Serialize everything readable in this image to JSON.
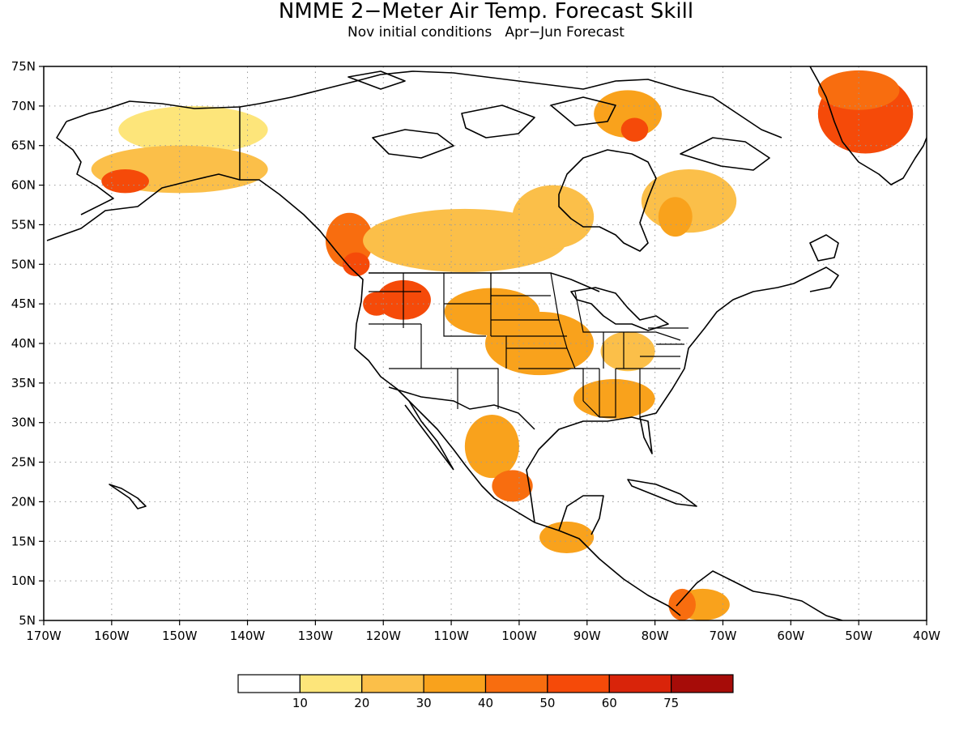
{
  "title": "NMME 2−Meter Air Temp. Forecast Skill",
  "subtitle": "Nov initial conditions   Apr−Jun Forecast",
  "map": {
    "lon_range": [
      -170,
      -40
    ],
    "lat_range": [
      5,
      75
    ],
    "gridlines": "dotted",
    "lat_ticks": [
      "5N",
      "10N",
      "15N",
      "20N",
      "25N",
      "30N",
      "35N",
      "40N",
      "45N",
      "50N",
      "55N",
      "60N",
      "65N",
      "70N",
      "75N"
    ],
    "lon_ticks": [
      "170W",
      "160W",
      "150W",
      "140W",
      "130W",
      "120W",
      "110W",
      "100W",
      "90W",
      "80W",
      "70W",
      "60W",
      "50W",
      "40W"
    ]
  },
  "colorbar": {
    "labels": [
      "10",
      "20",
      "30",
      "40",
      "50",
      "60",
      "75"
    ],
    "colors": [
      "#ffffff",
      "#fde57a",
      "#fbbf49",
      "#f9a21c",
      "#f86d0f",
      "#f54a09",
      "#d9240a",
      "#a60c08"
    ]
  },
  "chart_data": {
    "type": "heatmap",
    "variable": "2-Meter Air Temperature forecast skill",
    "x_range": [
      -170,
      -40
    ],
    "y_range": [
      5,
      75
    ],
    "levels": [
      10,
      20,
      30,
      40,
      50,
      60,
      75
    ],
    "regions": [
      {
        "lon": -148,
        "lat": 67,
        "w": 22,
        "h": 6,
        "level": 0
      },
      {
        "lon": -150,
        "lat": 62,
        "w": 26,
        "h": 6,
        "level": 1
      },
      {
        "lon": -158,
        "lat": 60.5,
        "w": 7,
        "h": 3,
        "level": 4
      },
      {
        "lon": -125,
        "lat": 53,
        "w": 7,
        "h": 7,
        "level": 3
      },
      {
        "lon": -124,
        "lat": 50,
        "w": 4,
        "h": 3,
        "level": 4
      },
      {
        "lon": -108,
        "lat": 53,
        "w": 30,
        "h": 8,
        "level": 1
      },
      {
        "lon": -104,
        "lat": 44,
        "w": 14,
        "h": 6,
        "level": 2
      },
      {
        "lon": -117,
        "lat": 45.5,
        "w": 8,
        "h": 5,
        "level": 4
      },
      {
        "lon": -121,
        "lat": 45,
        "w": 4,
        "h": 3,
        "level": 4
      },
      {
        "lon": -97,
        "lat": 40,
        "w": 16,
        "h": 8,
        "level": 2
      },
      {
        "lon": -86,
        "lat": 33,
        "w": 12,
        "h": 5,
        "level": 2
      },
      {
        "lon": -84,
        "lat": 39,
        "w": 8,
        "h": 5,
        "level": 1
      },
      {
        "lon": -104,
        "lat": 27,
        "w": 8,
        "h": 8,
        "level": 2
      },
      {
        "lon": -101,
        "lat": 22,
        "w": 6,
        "h": 4,
        "level": 3
      },
      {
        "lon": -93,
        "lat": 15.5,
        "w": 8,
        "h": 4,
        "level": 2
      },
      {
        "lon": -95,
        "lat": 56,
        "w": 12,
        "h": 8,
        "level": 1
      },
      {
        "lon": -75,
        "lat": 58,
        "w": 14,
        "h": 8,
        "level": 1
      },
      {
        "lon": -77,
        "lat": 56,
        "w": 5,
        "h": 5,
        "level": 2
      },
      {
        "lon": -84,
        "lat": 69,
        "w": 10,
        "h": 6,
        "level": 2
      },
      {
        "lon": -83,
        "lat": 67,
        "w": 4,
        "h": 3,
        "level": 4
      },
      {
        "lon": -49,
        "lat": 69,
        "w": 14,
        "h": 10,
        "level": 4
      },
      {
        "lon": -50,
        "lat": 72,
        "w": 12,
        "h": 5,
        "level": 3
      },
      {
        "lon": -73,
        "lat": 7,
        "w": 8,
        "h": 4,
        "level": 2
      },
      {
        "lon": -76,
        "lat": 7,
        "w": 4,
        "h": 4,
        "level": 3
      }
    ]
  }
}
